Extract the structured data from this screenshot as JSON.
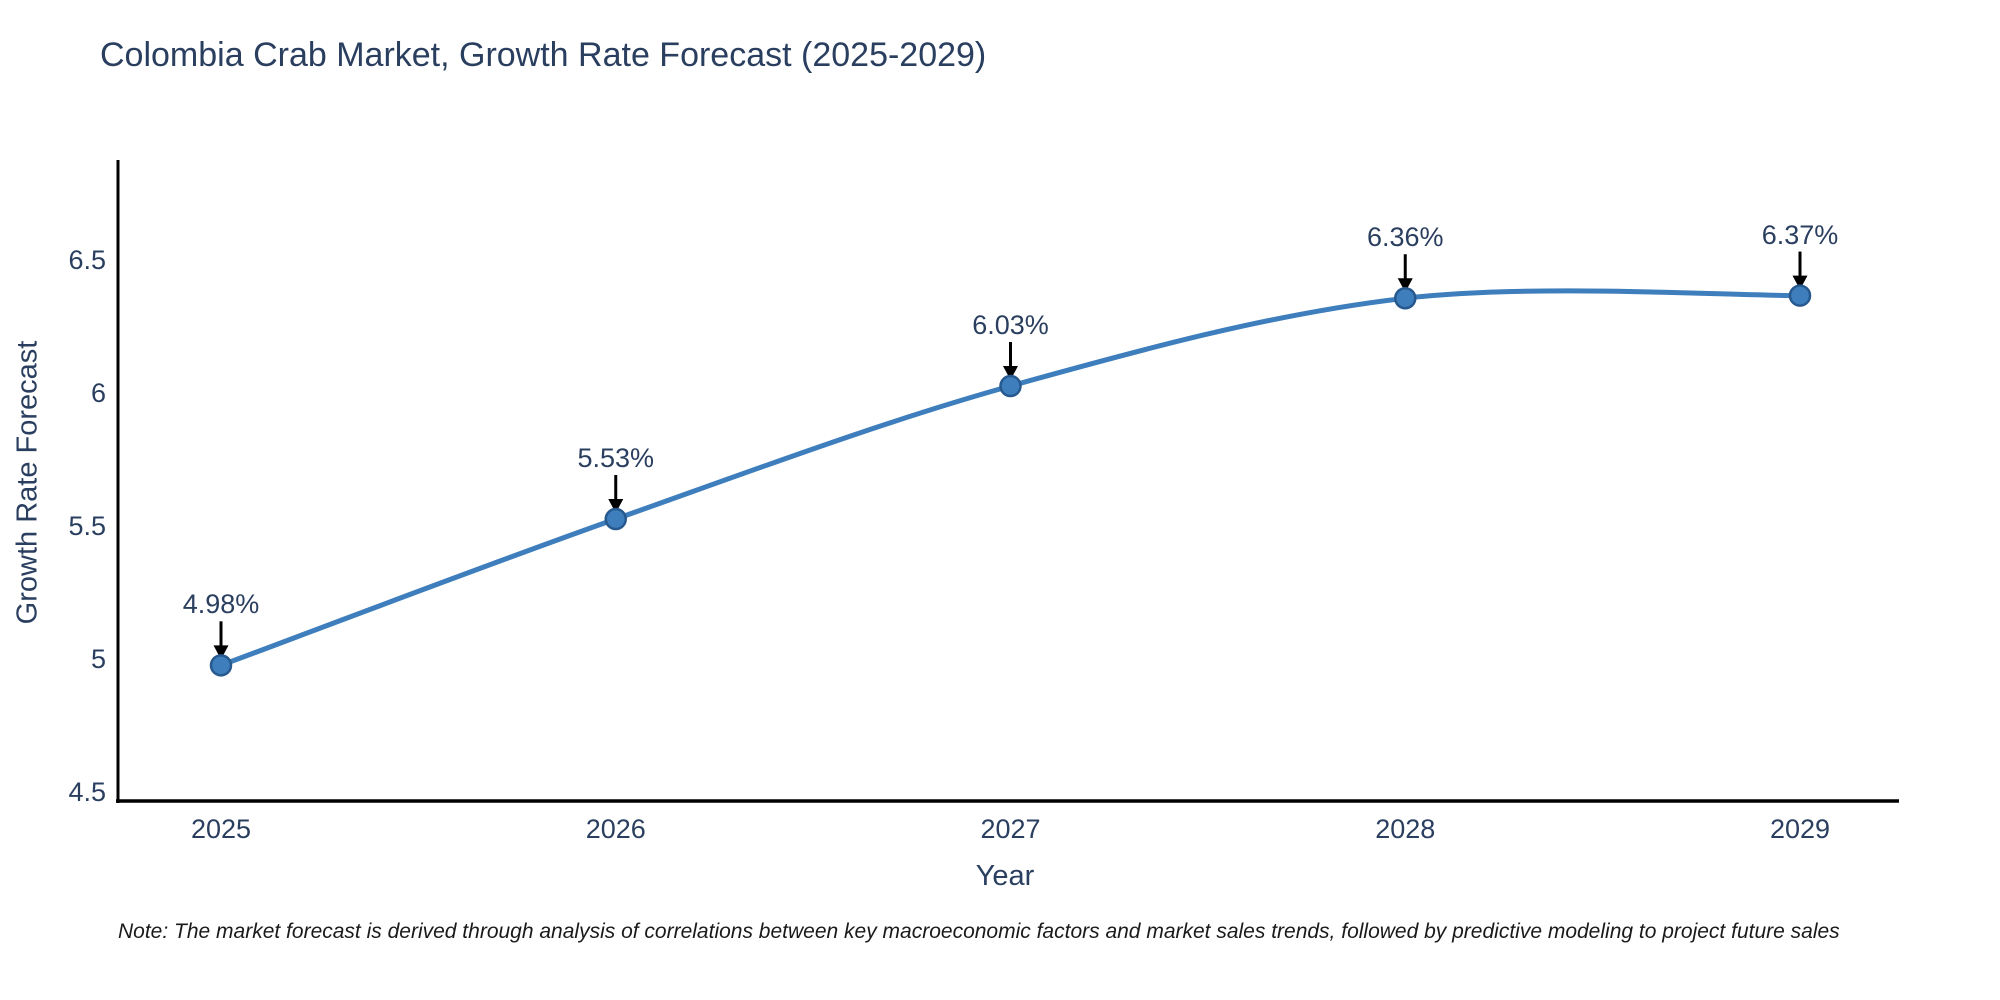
{
  "title": "Colombia Crab Market, Growth Rate Forecast (2025-2029)",
  "note": "Note: The market forecast is derived through analysis of correlations between key macroeconomic factors and market sales trends, followed by predictive modeling to project future sales",
  "chart_data": {
    "type": "line",
    "line_shape": "spline",
    "title": "Colombia Crab Market, Growth Rate Forecast (2025-2029)",
    "xlabel": "Year",
    "ylabel": "Growth Rate Forecast",
    "categories": [
      "2025",
      "2026",
      "2027",
      "2028",
      "2029"
    ],
    "series": [
      {
        "name": "Growth Rate Forecast",
        "values": [
          4.98,
          5.53,
          6.03,
          6.36,
          6.37
        ]
      }
    ],
    "point_labels": [
      "4.98%",
      "5.53%",
      "6.03%",
      "6.36%",
      "6.37%"
    ],
    "ytick_values": [
      4.5,
      5,
      5.5,
      6,
      6.5
    ],
    "ytick_labels": [
      "4.5",
      "5",
      "5.5",
      "6",
      "6.5"
    ],
    "ylim": [
      4.47,
      6.91
    ],
    "grid": false,
    "legend": "none",
    "annotation_style": "down-arrow-to-point",
    "colors": {
      "line": "#3e7ebd",
      "marker_fill": "#3e7ebd",
      "marker_stroke": "#27598e",
      "axis_line": "#000000",
      "tick_text": "#2a3f5f",
      "annotation_text": "#2a3f5f",
      "arrow": "#000000",
      "title_text": "#2a3f5f",
      "background": "#ffffff"
    }
  }
}
